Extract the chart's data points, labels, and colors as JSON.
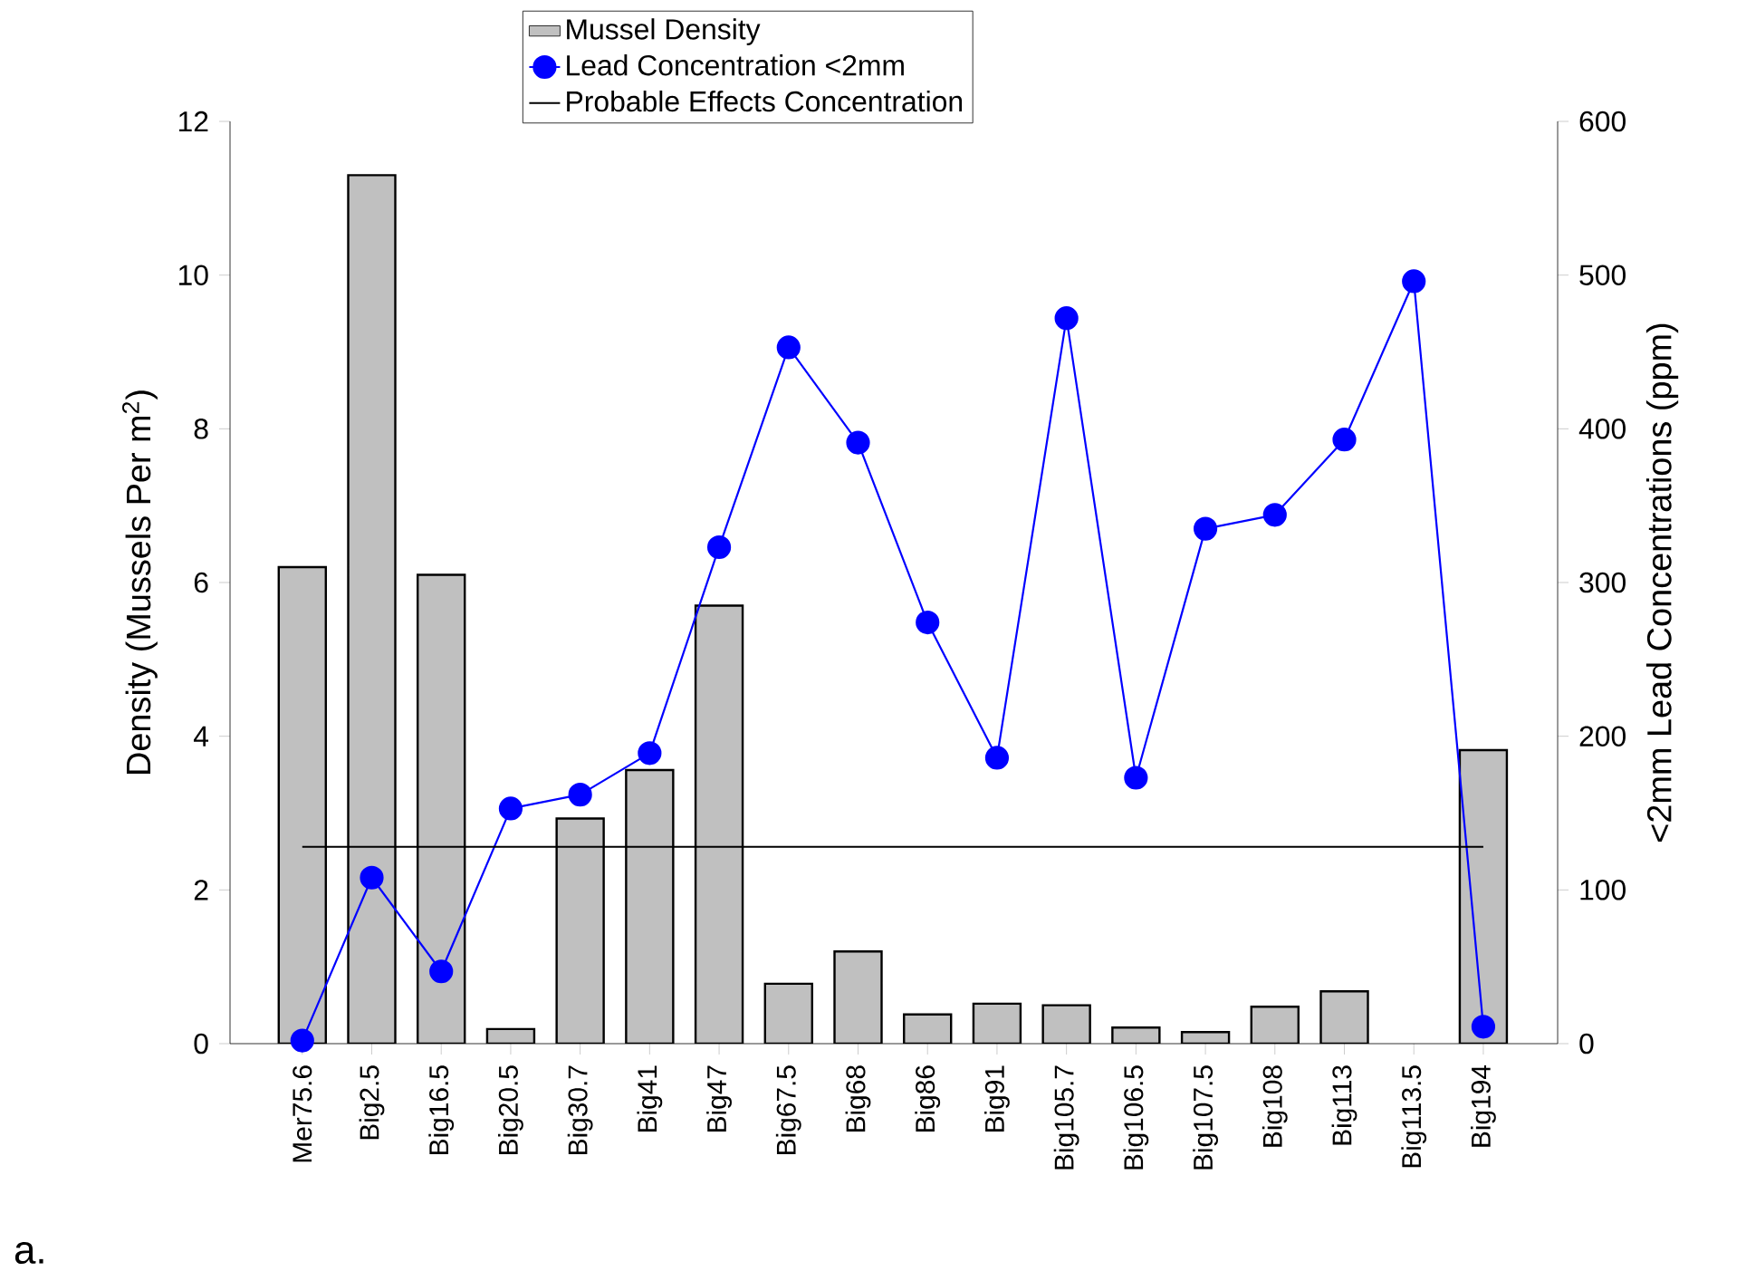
{
  "chart_data": {
    "type": "bar",
    "categories": [
      "Mer75.6",
      "Big2.5",
      "Big16.5",
      "Big20.5",
      "Big30.7",
      "Big41",
      "Big47",
      "Big67.5",
      "Big68",
      "Big86",
      "Big91",
      "Big105.7",
      "Big106.5",
      "Big107.5",
      "Big108",
      "Big113",
      "Big113.5",
      "Big194"
    ],
    "series": [
      {
        "name": "Mussel Density",
        "color": "#c0c0c0",
        "values": [
          6.2,
          11.3,
          6.1,
          0.19,
          2.93,
          3.56,
          5.7,
          0.78,
          1.2,
          0.38,
          0.52,
          0.5,
          0.21,
          0.15,
          0.48,
          0.68,
          null,
          3.82
        ]
      },
      {
        "name": "Lead Concentration <2mm",
        "type": "line",
        "color": "#0000ff",
        "axis": "y2",
        "values": [
          2,
          108,
          47,
          153,
          162,
          189,
          323,
          453,
          391,
          274,
          186,
          472,
          173,
          335,
          344,
          393,
          496,
          11
        ]
      }
    ],
    "ylabel": "Density (Mussels Per m$^{2}$)",
    "y2label": "<2mm Lead Concentrations (ppm)",
    "ylim": [
      0,
      12
    ],
    "yticks": [
      0,
      2,
      4,
      6,
      8,
      10,
      12
    ],
    "y2lim": [
      0,
      600
    ],
    "y2ticks": [
      0,
      100,
      200,
      300,
      400,
      500,
      600
    ],
    "ref_lines": [
      {
        "axis": "y2",
        "value": 128,
        "label": "Probable Effects Concentration",
        "color": "#000000"
      }
    ],
    "marker": "circle",
    "legend": "top",
    "annotations": [
      "a."
    ]
  }
}
